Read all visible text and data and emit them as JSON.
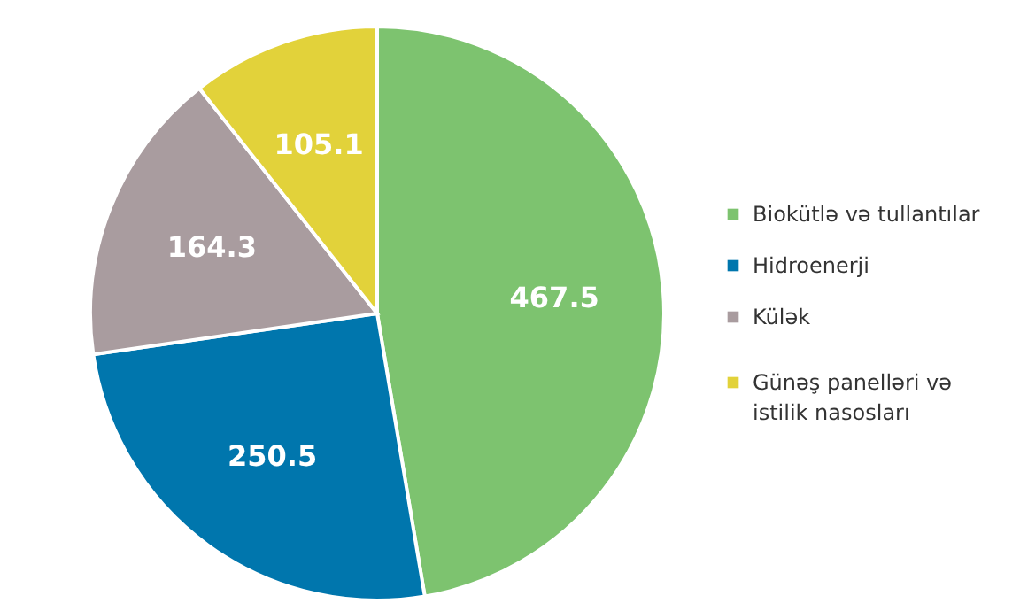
{
  "chart_data": {
    "type": "pie",
    "categories": [
      "Biokütlə və tullantılar",
      "Hidroenerji",
      "Külək",
      "Günəş panelləri və istilik nasosları"
    ],
    "values": [
      467.5,
      250.5,
      164.3,
      105.1
    ],
    "colors": [
      "#7dc36f",
      "#0076ad",
      "#a99c9f",
      "#e2d23a"
    ],
    "data_labels": true,
    "legend": "right"
  }
}
